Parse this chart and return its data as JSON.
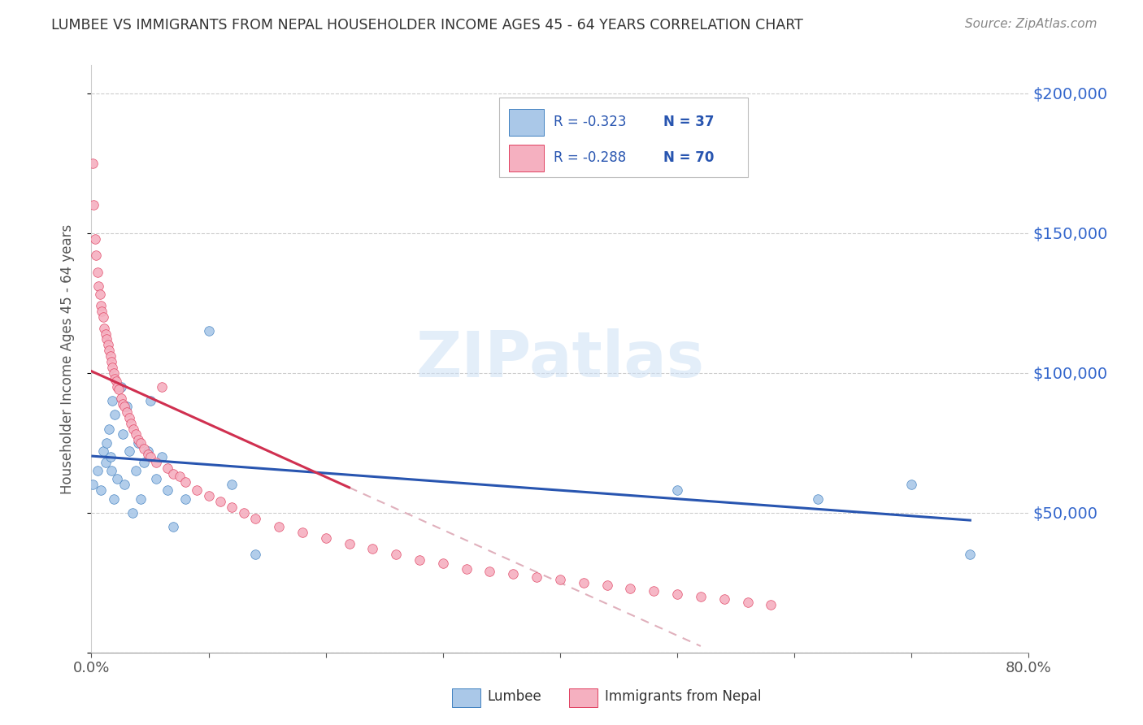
{
  "title": "LUMBEE VS IMMIGRANTS FROM NEPAL HOUSEHOLDER INCOME AGES 45 - 64 YEARS CORRELATION CHART",
  "source": "Source: ZipAtlas.com",
  "ylabel": "Householder Income Ages 45 - 64 years",
  "xlim": [
    0.0,
    0.8
  ],
  "ylim": [
    0,
    210000
  ],
  "ytick_vals": [
    0,
    50000,
    100000,
    150000,
    200000
  ],
  "ytick_labels": [
    "",
    "$50,000",
    "$100,000",
    "$150,000",
    "$200,000"
  ],
  "xtick_vals": [
    0.0,
    0.1,
    0.2,
    0.3,
    0.4,
    0.5,
    0.6,
    0.7,
    0.8
  ],
  "legend_r_lumbee": "R = -0.323",
  "legend_n_lumbee": "N = 37",
  "legend_r_nepal": "R = -0.288",
  "legend_n_nepal": "N = 70",
  "lumbee_color": "#aac8e8",
  "lumbee_edge": "#4080c0",
  "nepal_color": "#f5b0c0",
  "nepal_edge": "#e04060",
  "lumbee_line_color": "#2855b0",
  "nepal_line_color": "#d03050",
  "nepal_dash_color": "#e0b0bc",
  "lumbee_x": [
    0.001,
    0.005,
    0.008,
    0.01,
    0.012,
    0.013,
    0.015,
    0.016,
    0.017,
    0.018,
    0.019,
    0.02,
    0.022,
    0.025,
    0.027,
    0.028,
    0.03,
    0.032,
    0.035,
    0.038,
    0.04,
    0.042,
    0.045,
    0.048,
    0.05,
    0.055,
    0.06,
    0.065,
    0.07,
    0.08,
    0.1,
    0.12,
    0.14,
    0.5,
    0.62,
    0.7,
    0.75
  ],
  "lumbee_y": [
    60000,
    65000,
    58000,
    72000,
    68000,
    75000,
    80000,
    70000,
    65000,
    90000,
    55000,
    85000,
    62000,
    95000,
    78000,
    60000,
    88000,
    72000,
    50000,
    65000,
    75000,
    55000,
    68000,
    72000,
    90000,
    62000,
    70000,
    58000,
    45000,
    55000,
    115000,
    60000,
    35000,
    58000,
    55000,
    60000,
    35000
  ],
  "nepal_x": [
    0.001,
    0.002,
    0.003,
    0.004,
    0.005,
    0.006,
    0.007,
    0.008,
    0.009,
    0.01,
    0.011,
    0.012,
    0.013,
    0.014,
    0.015,
    0.016,
    0.017,
    0.018,
    0.019,
    0.02,
    0.021,
    0.022,
    0.023,
    0.025,
    0.027,
    0.028,
    0.03,
    0.032,
    0.034,
    0.036,
    0.038,
    0.04,
    0.042,
    0.045,
    0.048,
    0.05,
    0.055,
    0.06,
    0.065,
    0.07,
    0.075,
    0.08,
    0.09,
    0.1,
    0.11,
    0.12,
    0.13,
    0.14,
    0.16,
    0.18,
    0.2,
    0.22,
    0.24,
    0.26,
    0.28,
    0.3,
    0.32,
    0.34,
    0.36,
    0.38,
    0.4,
    0.42,
    0.44,
    0.46,
    0.48,
    0.5,
    0.52,
    0.54,
    0.56,
    0.58
  ],
  "nepal_y": [
    175000,
    160000,
    148000,
    142000,
    136000,
    131000,
    128000,
    124000,
    122000,
    120000,
    116000,
    114000,
    112000,
    110000,
    108000,
    106000,
    104000,
    102000,
    100000,
    98000,
    97000,
    95000,
    94000,
    91000,
    89000,
    88000,
    86000,
    84000,
    82000,
    80000,
    78000,
    76000,
    75000,
    73000,
    71000,
    70000,
    68000,
    95000,
    66000,
    64000,
    63000,
    61000,
    58000,
    56000,
    54000,
    52000,
    50000,
    48000,
    45000,
    43000,
    41000,
    39000,
    37000,
    35000,
    33000,
    32000,
    30000,
    29000,
    28000,
    27000,
    26000,
    25000,
    24000,
    23000,
    22000,
    21000,
    20000,
    19000,
    18000,
    17000
  ]
}
